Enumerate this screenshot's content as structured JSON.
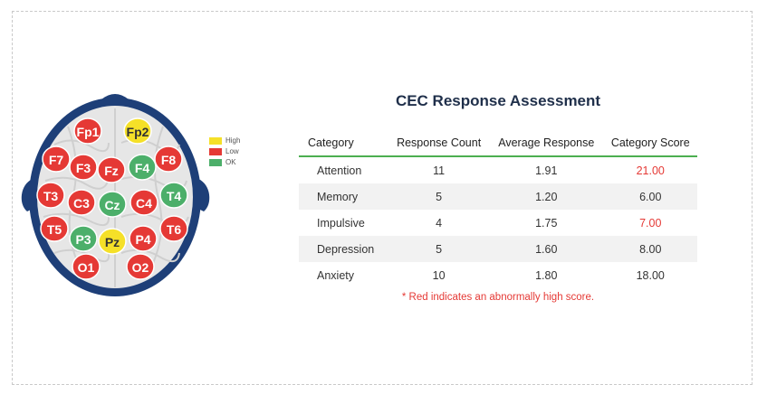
{
  "legend": [
    {
      "label": "High",
      "color": "#f5e028"
    },
    {
      "label": "Low",
      "color": "#e53935"
    },
    {
      "label": "OK",
      "color": "#4caf6a"
    }
  ],
  "electrodes": [
    {
      "id": "Fp1",
      "label": "Fp1",
      "status": "low"
    },
    {
      "id": "Fp2",
      "label": "Fp2",
      "status": "high"
    },
    {
      "id": "F7",
      "label": "F7",
      "status": "low"
    },
    {
      "id": "F3",
      "label": "F3",
      "status": "low"
    },
    {
      "id": "Fz",
      "label": "Fz",
      "status": "low"
    },
    {
      "id": "F4",
      "label": "F4",
      "status": "ok"
    },
    {
      "id": "F8",
      "label": "F8",
      "status": "low"
    },
    {
      "id": "T3",
      "label": "T3",
      "status": "low"
    },
    {
      "id": "C3",
      "label": "C3",
      "status": "low"
    },
    {
      "id": "Cz",
      "label": "Cz",
      "status": "ok"
    },
    {
      "id": "C4",
      "label": "C4",
      "status": "low"
    },
    {
      "id": "T4",
      "label": "T4",
      "status": "ok"
    },
    {
      "id": "T5",
      "label": "T5",
      "status": "low"
    },
    {
      "id": "P3",
      "label": "P3",
      "status": "ok"
    },
    {
      "id": "Pz",
      "label": "Pz",
      "status": "high"
    },
    {
      "id": "P4",
      "label": "P4",
      "status": "low"
    },
    {
      "id": "T6",
      "label": "T6",
      "status": "low"
    },
    {
      "id": "O1",
      "label": "O1",
      "status": "low"
    },
    {
      "id": "O2",
      "label": "O2",
      "status": "low"
    }
  ],
  "assessment": {
    "title": "CEC Response Assessment",
    "headers": {
      "category": "Category",
      "count": "Response Count",
      "average": "Average Response",
      "score": "Category Score"
    },
    "rows": [
      {
        "category": "Attention",
        "count": "11",
        "average": "1.91",
        "score": "21.00",
        "abnormal": true
      },
      {
        "category": "Memory",
        "count": "5",
        "average": "1.20",
        "score": "6.00",
        "abnormal": false
      },
      {
        "category": "Impulsive",
        "count": "4",
        "average": "1.75",
        "score": "7.00",
        "abnormal": true
      },
      {
        "category": "Depression",
        "count": "5",
        "average": "1.60",
        "score": "8.00",
        "abnormal": false
      },
      {
        "category": "Anxiety",
        "count": "10",
        "average": "1.80",
        "score": "18.00",
        "abnormal": false
      }
    ],
    "note": "* Red indicates an abnormally high score."
  },
  "colors": {
    "high": "#f5e028",
    "low": "#e53935",
    "ok": "#4caf6a",
    "head": "#1e3f78",
    "brain": "#e6e6e6",
    "accent_line": "#4caf50"
  }
}
